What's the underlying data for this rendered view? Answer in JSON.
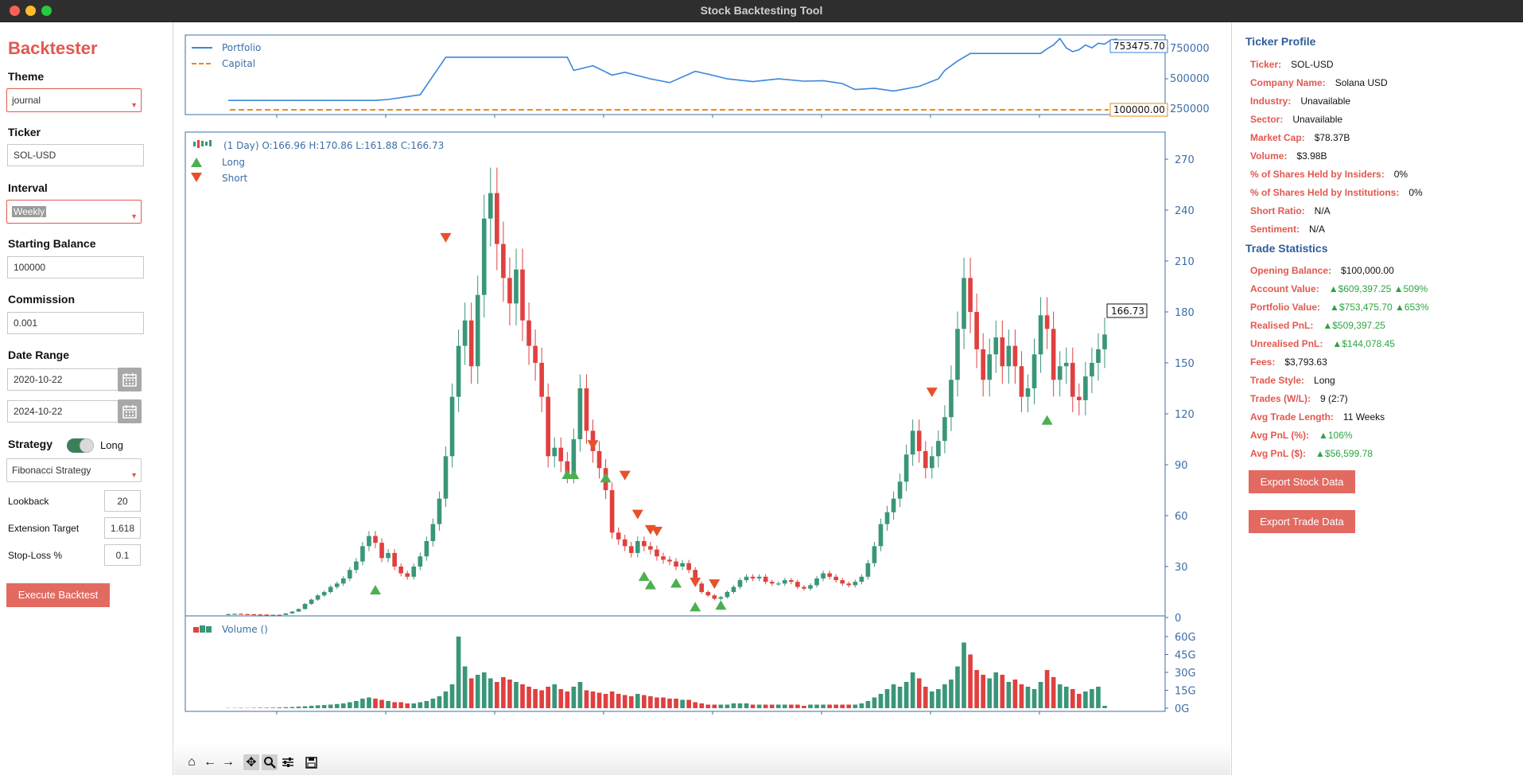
{
  "window": {
    "title": "Stock Backtesting Tool"
  },
  "sidebar": {
    "app_title": "Backtester",
    "theme_label": "Theme",
    "theme_value": "journal",
    "ticker_label": "Ticker",
    "ticker_value": "SOL-USD",
    "interval_label": "Interval",
    "interval_value": "Weekly",
    "balance_label": "Starting Balance",
    "balance_value": "100000",
    "commission_label": "Commission",
    "commission_value": "0.001",
    "date_range_label": "Date Range",
    "start_date": "2020-10-22",
    "end_date": "2024-10-22",
    "strategy_label": "Strategy",
    "strategy_toggle_label": "Long",
    "strategy_value": "Fibonacci Strategy",
    "params": [
      {
        "label": "Lookback",
        "value": "20"
      },
      {
        "label": "Extension Target",
        "value": "1.618"
      },
      {
        "label": "Stop-Loss %",
        "value": "0.1"
      }
    ],
    "execute_label": "Execute Backtest"
  },
  "chart": {
    "colors": {
      "up": "#3a9679",
      "down": "#e04040",
      "portfolio": "#3a86e0",
      "capital": "#ef8a17",
      "axis": "#3c6ea8",
      "long": "#4caf50",
      "short": "#e8502a"
    },
    "equity_panel": {
      "legend": [
        "Portfolio",
        "Capital"
      ],
      "yticks": [
        "750000",
        "500000",
        "250000"
      ],
      "portfolio_last_label": "753475.70",
      "capital_label": "100000.00"
    },
    "price_panel": {
      "ohlc_label": "(1 Day) O:166.96 H:170.86 L:161.88 C:166.73",
      "legend": [
        "Long",
        "Short"
      ],
      "yticks": [
        "270",
        "240",
        "210",
        "180",
        "150",
        "120",
        "90",
        "60",
        "30",
        "0"
      ],
      "last_price_label": "166.73"
    },
    "volume_panel": {
      "label": "Volume ()",
      "yticks": [
        "60G",
        "45G",
        "30G",
        "15G",
        "0G"
      ]
    }
  },
  "chart_data": {
    "type": "candlestick",
    "title": "(1 Day) O:166.96 H:170.86 L:161.88 C:166.73",
    "interval": "Weekly",
    "ylim": [
      0,
      270
    ],
    "volume_ylim": [
      0,
      60
    ],
    "equity_ylim": [
      0,
      800000
    ],
    "close_series": [
      2.0,
      2.2,
      2.0,
      1.9,
      1.8,
      1.7,
      1.5,
      1.6,
      1.5,
      2.4,
      3.5,
      5.0,
      8.0,
      10.5,
      13,
      15,
      18,
      20,
      23,
      28,
      33,
      42,
      48,
      44,
      35,
      38,
      30,
      26,
      24,
      30,
      36,
      45,
      55,
      70,
      95,
      130,
      160,
      175,
      148,
      190,
      235,
      250,
      220,
      200,
      185,
      205,
      175,
      160,
      150,
      130,
      95,
      100,
      92,
      85,
      105,
      135,
      110,
      98,
      88,
      75,
      50,
      46,
      42,
      38,
      45,
      42,
      40,
      36,
      34,
      33,
      30,
      32,
      28,
      20,
      15,
      13,
      11,
      12,
      15,
      18,
      22,
      24,
      23,
      24,
      21,
      20,
      20,
      22,
      21,
      18,
      17,
      19,
      23,
      26,
      24,
      22,
      20,
      19,
      21,
      24,
      32,
      42,
      55,
      62,
      70,
      80,
      96,
      110,
      98,
      88,
      95,
      104,
      118,
      140,
      170,
      200,
      180,
      158,
      140,
      155,
      165,
      148,
      160,
      148,
      130,
      135,
      155,
      178,
      170,
      140,
      148,
      150,
      130,
      128,
      142,
      150,
      158,
      166.7
    ],
    "volume_series": [
      0.2,
      0.2,
      0.3,
      0.2,
      0.3,
      0.4,
      0.4,
      0.5,
      0.6,
      0.8,
      1.0,
      1.3,
      1.6,
      2.0,
      2.4,
      2.6,
      3.0,
      3.5,
      4,
      5,
      6,
      8,
      9,
      8,
      7,
      6,
      5,
      5,
      4,
      4,
      5,
      6,
      8,
      10,
      14,
      20,
      60,
      35,
      25,
      28,
      30,
      25,
      22,
      26,
      24,
      22,
      20,
      18,
      16,
      15,
      18,
      20,
      16,
      14,
      18,
      22,
      15,
      14,
      13,
      12,
      14,
      12,
      11,
      10,
      12,
      11,
      10,
      9,
      9,
      8,
      8,
      7,
      7,
      5,
      4,
      3,
      3,
      3,
      3,
      4,
      4,
      4,
      3,
      3,
      3,
      3,
      3,
      3,
      3,
      3,
      2,
      3,
      3,
      3,
      3,
      3,
      3,
      3,
      3,
      4,
      6,
      9,
      12,
      16,
      20,
      18,
      22,
      30,
      25,
      18,
      14,
      16,
      20,
      24,
      35,
      55,
      45,
      32,
      28,
      25,
      30,
      28,
      22,
      24,
      20,
      18,
      16,
      22,
      32,
      26,
      20,
      18,
      16,
      12,
      14,
      16,
      18,
      2
    ],
    "long_signals": [
      {
        "index": 23,
        "price": 22
      },
      {
        "index": 53,
        "price": 90
      },
      {
        "index": 54,
        "price": 90
      },
      {
        "index": 59,
        "price": 88
      },
      {
        "index": 65,
        "price": 30
      },
      {
        "index": 66,
        "price": 25
      },
      {
        "index": 70,
        "price": 26
      },
      {
        "index": 73,
        "price": 12
      },
      {
        "index": 77,
        "price": 13
      },
      {
        "index": 128,
        "price": 122
      }
    ],
    "short_signals": [
      {
        "index": 34,
        "price": 218
      },
      {
        "index": 57,
        "price": 96
      },
      {
        "index": 62,
        "price": 78
      },
      {
        "index": 64,
        "price": 55
      },
      {
        "index": 66,
        "price": 46
      },
      {
        "index": 67,
        "price": 45
      },
      {
        "index": 73,
        "price": 15
      },
      {
        "index": 76,
        "price": 14
      },
      {
        "index": 110,
        "price": 127
      }
    ]
  },
  "profile": {
    "header": "Ticker Profile",
    "rows": [
      {
        "k": "Ticker:",
        "v": "SOL-USD"
      },
      {
        "k": "Company Name:",
        "v": "Solana USD"
      },
      {
        "k": "Industry:",
        "v": "Unavailable"
      },
      {
        "k": "Sector:",
        "v": "Unavailable"
      },
      {
        "k": "Market Cap:",
        "v": "$78.37B"
      },
      {
        "k": "Volume:",
        "v": "$3.98B"
      },
      {
        "k": "% of Shares Held by Insiders:",
        "v": "0%"
      },
      {
        "k": "% of Shares Held by Institutions:",
        "v": "0%"
      },
      {
        "k": "Short Ratio:",
        "v": "N/A"
      },
      {
        "k": "Sentiment:",
        "v": "N/A"
      }
    ]
  },
  "stats": {
    "header": "Trade Statistics",
    "rows": [
      {
        "k": "Opening Balance:",
        "v": "$100,000.00",
        "green": false
      },
      {
        "k": "Account Value:",
        "v": "▲$609,397.25 ▲509%",
        "green": true
      },
      {
        "k": "Portfolio Value:",
        "v": "▲$753,475.70 ▲653%",
        "green": true
      },
      {
        "k": "Realised PnL:",
        "v": "▲$509,397.25",
        "green": true
      },
      {
        "k": "Unrealised PnL:",
        "v": "▲$144,078.45",
        "green": true
      },
      {
        "k": "Fees:",
        "v": "$3,793.63",
        "green": false
      },
      {
        "k": "Trade Style:",
        "v": "Long",
        "green": false
      },
      {
        "k": "Trades (W/L):",
        "v": "9 (2:7)",
        "green": false
      },
      {
        "k": "Avg Trade Length:",
        "v": "11 Weeks",
        "green": false
      },
      {
        "k": "Avg PnL (%):",
        "v": "▲106%",
        "green": true
      },
      {
        "k": "Avg PnL ($):",
        "v": "▲$56,599.78",
        "green": true
      }
    ],
    "export_stock_label": "Export Stock Data",
    "export_trade_label": "Export Trade Data"
  }
}
